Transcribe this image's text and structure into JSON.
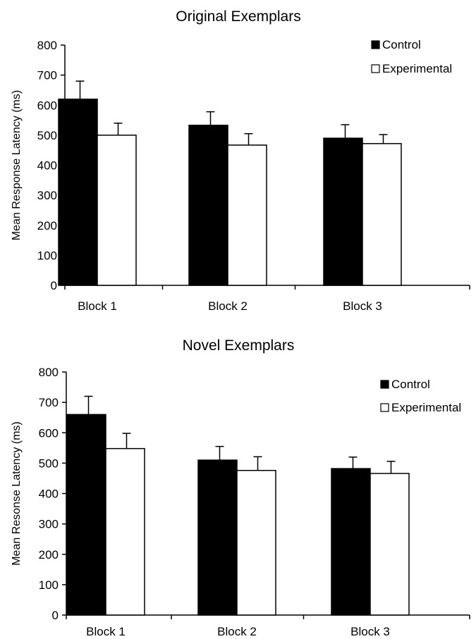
{
  "chart_data": [
    {
      "type": "bar",
      "title": "Original Exemplars",
      "xlabel": "",
      "ylabel": "Mean Response Latency (ms)",
      "categories": [
        "Block 1",
        "Block 2",
        "Block 3"
      ],
      "series": [
        {
          "name": "Control",
          "values": [
            620,
            533,
            490
          ],
          "errors": [
            60,
            45,
            45
          ],
          "color": "#000000"
        },
        {
          "name": "Experimental",
          "values": [
            500,
            467,
            472
          ],
          "errors": [
            40,
            38,
            30
          ],
          "color": "#ffffff"
        }
      ],
      "ylim": [
        0,
        800
      ],
      "yticks": [
        0,
        100,
        200,
        300,
        400,
        500,
        600,
        700,
        800
      ],
      "legend_position": "top-right",
      "grid": false
    },
    {
      "type": "bar",
      "title": "Novel Exemplars",
      "xlabel": "",
      "ylabel": "Mean Resonse Latency (ms)",
      "categories": [
        "Block 1",
        "Block 2",
        "Block 3"
      ],
      "series": [
        {
          "name": "Control",
          "values": [
            660,
            510,
            482
          ],
          "errors": [
            60,
            45,
            38
          ],
          "color": "#000000"
        },
        {
          "name": "Experimental",
          "values": [
            548,
            476,
            466
          ],
          "errors": [
            50,
            45,
            40
          ],
          "color": "#ffffff"
        }
      ],
      "ylim": [
        0,
        800
      ],
      "yticks": [
        0,
        100,
        200,
        300,
        400,
        500,
        600,
        700,
        800
      ],
      "legend_position": "top-right",
      "grid": false
    }
  ]
}
